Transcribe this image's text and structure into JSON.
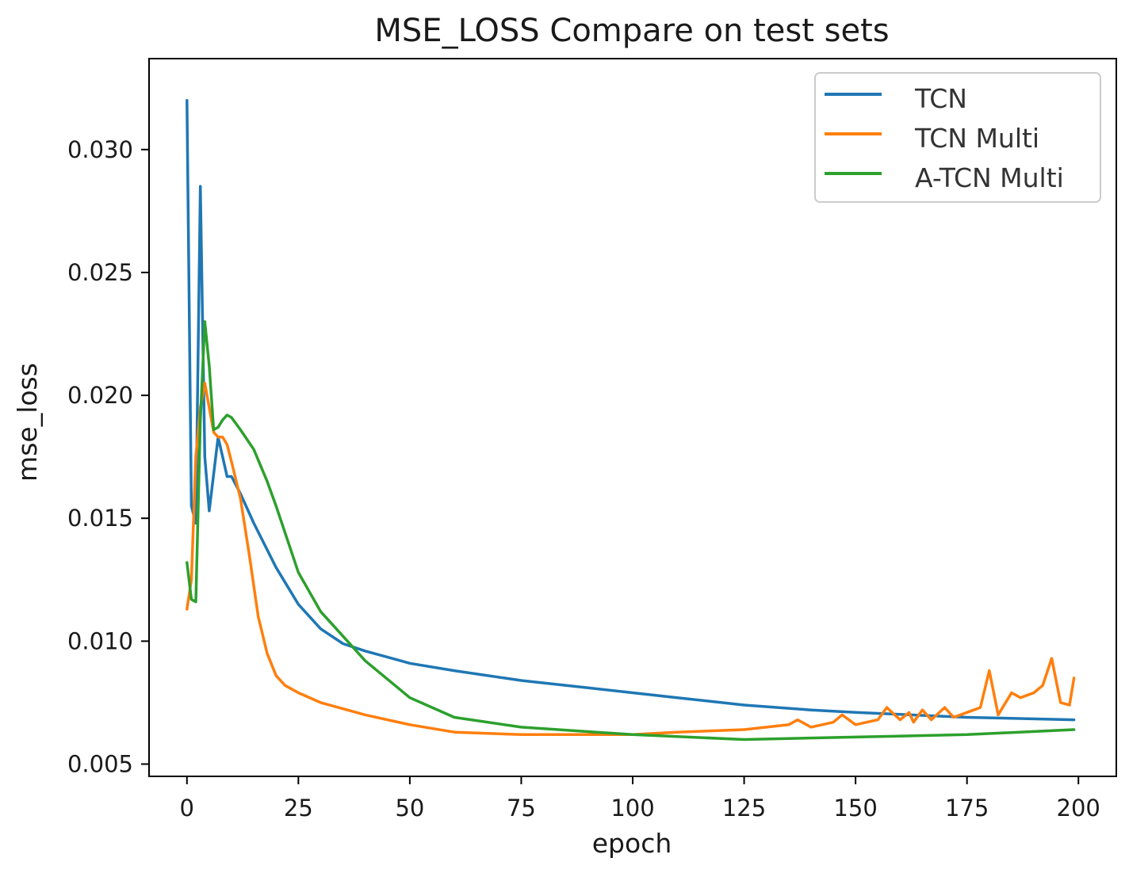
{
  "chart_data": {
    "type": "line",
    "title": "MSE_LOSS Compare on test sets",
    "xlabel": "epoch",
    "ylabel": "mse_loss",
    "xlim": [
      -8.5,
      208.5
    ],
    "ylim": [
      0.0045,
      0.0337
    ],
    "xticks": [
      0,
      25,
      50,
      75,
      100,
      125,
      150,
      175,
      200
    ],
    "xtick_labels": [
      "0",
      "25",
      "50",
      "75",
      "100",
      "125",
      "150",
      "175",
      "200"
    ],
    "yticks": [
      0.005,
      0.01,
      0.015,
      0.02,
      0.025,
      0.03
    ],
    "ytick_labels": [
      "0.005",
      "0.010",
      "0.015",
      "0.020",
      "0.025",
      "0.030"
    ],
    "legend_position": "top-right",
    "grid": false,
    "series": [
      {
        "name": "TCN",
        "color": "#1f77b4",
        "x": [
          0,
          1,
          2,
          3,
          4,
          5,
          6,
          7,
          8,
          9,
          10,
          12,
          15,
          20,
          25,
          30,
          35,
          40,
          50,
          60,
          75,
          90,
          100,
          110,
          125,
          140,
          150,
          175,
          199
        ],
        "y": [
          0.032,
          0.0155,
          0.0148,
          0.0285,
          0.0175,
          0.0153,
          0.0168,
          0.0183,
          0.0175,
          0.0167,
          0.0167,
          0.016,
          0.0148,
          0.013,
          0.0115,
          0.0105,
          0.0099,
          0.0096,
          0.0091,
          0.0088,
          0.0084,
          0.0081,
          0.0079,
          0.0077,
          0.0074,
          0.0072,
          0.0071,
          0.0069,
          0.0068
        ]
      },
      {
        "name": "TCN Multi",
        "color": "#ff7f0e",
        "x": [
          0,
          1,
          2,
          3,
          4,
          5,
          6,
          7,
          8,
          9,
          10,
          12,
          14,
          16,
          18,
          20,
          22,
          25,
          30,
          40,
          50,
          60,
          75,
          100,
          110,
          125,
          130,
          135,
          137,
          140,
          145,
          147,
          150,
          155,
          157,
          160,
          162,
          163,
          165,
          167,
          170,
          172,
          175,
          178,
          180,
          182,
          185,
          187,
          190,
          192,
          194,
          196,
          198,
          199
        ],
        "y": [
          0.0113,
          0.0125,
          0.0175,
          0.0195,
          0.0205,
          0.0195,
          0.0185,
          0.0183,
          0.0183,
          0.018,
          0.0173,
          0.0158,
          0.0135,
          0.011,
          0.0095,
          0.0086,
          0.0082,
          0.0079,
          0.0075,
          0.007,
          0.0066,
          0.0063,
          0.0062,
          0.0062,
          0.0063,
          0.0064,
          0.0065,
          0.0066,
          0.0068,
          0.0065,
          0.0067,
          0.007,
          0.0066,
          0.0068,
          0.0073,
          0.0068,
          0.0071,
          0.0067,
          0.0072,
          0.0068,
          0.0073,
          0.0069,
          0.0071,
          0.0073,
          0.0088,
          0.007,
          0.0079,
          0.0077,
          0.0079,
          0.0082,
          0.0093,
          0.0075,
          0.0074,
          0.0085
        ]
      },
      {
        "name": "A-TCN Multi",
        "color": "#2ca02c",
        "x": [
          0,
          1,
          2,
          3,
          4,
          5,
          6,
          7,
          8,
          9,
          10,
          12,
          15,
          18,
          20,
          25,
          30,
          35,
          40,
          50,
          60,
          75,
          100,
          125,
          150,
          175,
          199
        ],
        "y": [
          0.0132,
          0.0117,
          0.0116,
          0.019,
          0.023,
          0.0212,
          0.0186,
          0.0187,
          0.019,
          0.0192,
          0.0191,
          0.0186,
          0.0178,
          0.0165,
          0.0155,
          0.0128,
          0.0112,
          0.0102,
          0.0092,
          0.0077,
          0.0069,
          0.0065,
          0.0062,
          0.006,
          0.0061,
          0.0062,
          0.0064
        ]
      }
    ]
  }
}
